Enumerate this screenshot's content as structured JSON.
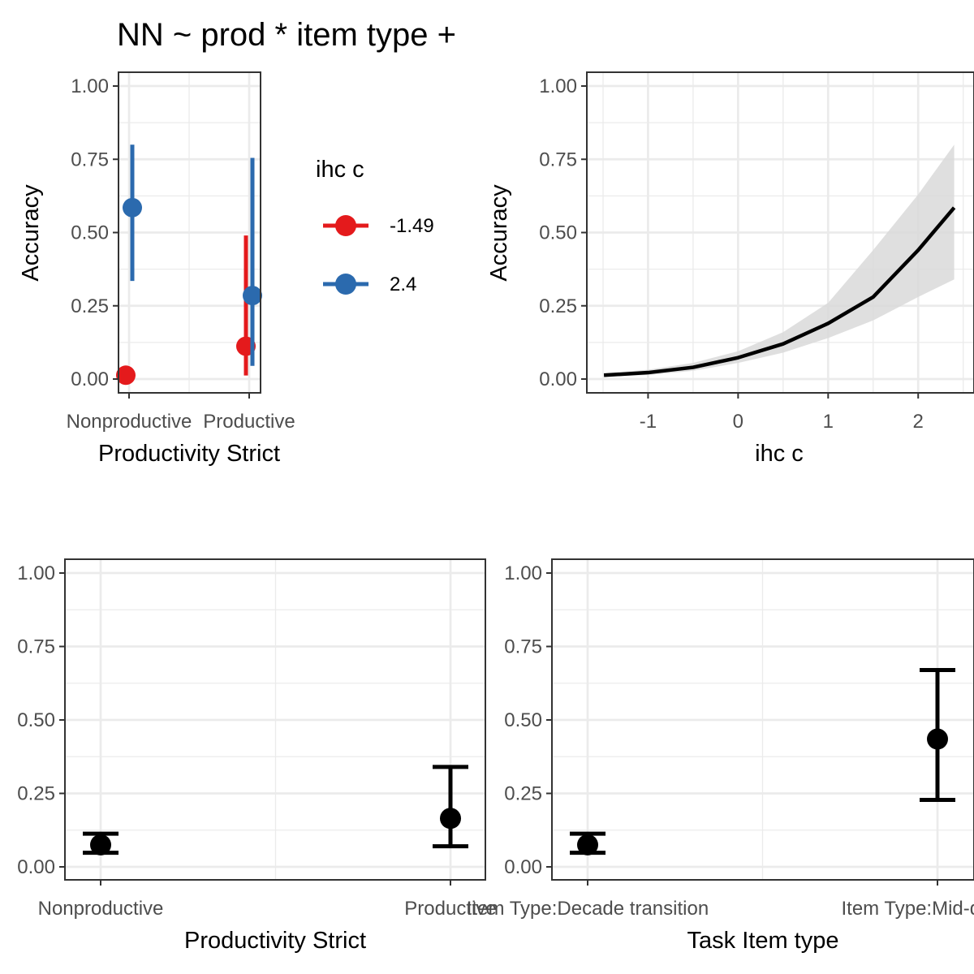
{
  "title": "NN ~ prod * item type +",
  "colors": {
    "red": "#E41A1C",
    "blue": "#2B6AAE",
    "black": "#000000",
    "ribbon": "#d9d9d9"
  },
  "chart_data": [
    {
      "id": "top-left",
      "type": "scatter",
      "ylabel": "Accuracy",
      "xlabel": "Productivity Strict",
      "categories": [
        "Nonproductive",
        "Productive"
      ],
      "ylim": [
        0,
        1
      ],
      "yticks": [
        "0.00",
        "0.25",
        "0.50",
        "0.75",
        "1.00"
      ],
      "legend": {
        "title": "ihc c",
        "position": "right"
      },
      "series": [
        {
          "name": "-1.49",
          "color": "#E41A1C",
          "points": [
            {
              "category": "Nonproductive",
              "y": 0.013,
              "lo": null,
              "hi": null
            },
            {
              "category": "Productive",
              "y": 0.112,
              "lo": 0.012,
              "hi": 0.49
            }
          ]
        },
        {
          "name": "2.4",
          "color": "#2B6AAE",
          "points": [
            {
              "category": "Nonproductive",
              "y": 0.585,
              "lo": 0.335,
              "hi": 0.8
            },
            {
              "category": "Productive",
              "y": 0.285,
              "lo": 0.045,
              "hi": 0.755
            }
          ]
        }
      ]
    },
    {
      "id": "top-right",
      "type": "line",
      "ylabel": "Accuracy",
      "xlabel": "ihc c",
      "xlim": [
        -1.68,
        2.62
      ],
      "ylim": [
        0,
        1
      ],
      "xticks": [
        "-1",
        "0",
        "1",
        "2"
      ],
      "yticks": [
        "0.00",
        "0.25",
        "0.50",
        "0.75",
        "1.00"
      ],
      "x": [
        -1.49,
        -1.0,
        -0.5,
        0.0,
        0.5,
        1.0,
        1.5,
        2.0,
        2.4
      ],
      "y": [
        0.013,
        0.022,
        0.04,
        0.073,
        0.12,
        0.19,
        0.28,
        0.44,
        0.585
      ],
      "lo": [
        0.008,
        0.014,
        0.028,
        0.055,
        0.09,
        0.14,
        0.2,
        0.28,
        0.34
      ],
      "hi": [
        0.02,
        0.032,
        0.055,
        0.095,
        0.16,
        0.26,
        0.44,
        0.63,
        0.8
      ]
    },
    {
      "id": "bottom-left",
      "type": "scatter",
      "ylabel": "",
      "xlabel": "Productivity Strict",
      "categories": [
        "Nonproductive",
        "Productive"
      ],
      "ylim": [
        0,
        1
      ],
      "yticks": [
        "0.00",
        "0.25",
        "0.50",
        "0.75",
        "1.00"
      ],
      "points": [
        {
          "category": "Nonproductive",
          "y": 0.075,
          "lo": 0.048,
          "hi": 0.113
        },
        {
          "category": "Productive",
          "y": 0.165,
          "lo": 0.07,
          "hi": 0.34
        }
      ]
    },
    {
      "id": "bottom-right",
      "type": "scatter",
      "ylabel": "",
      "xlabel": "Task Item type",
      "categories": [
        "Item Type:Decade transition",
        "Item Type:Mid-decade"
      ],
      "ylim": [
        0,
        1
      ],
      "yticks": [
        "0.00",
        "0.25",
        "0.50",
        "0.75",
        "1.00"
      ],
      "points": [
        {
          "category": "Item Type:Decade transition",
          "y": 0.075,
          "lo": 0.048,
          "hi": 0.113
        },
        {
          "category": "Item Type:Mid-decade",
          "y": 0.435,
          "lo": 0.228,
          "hi": 0.67
        }
      ]
    }
  ]
}
